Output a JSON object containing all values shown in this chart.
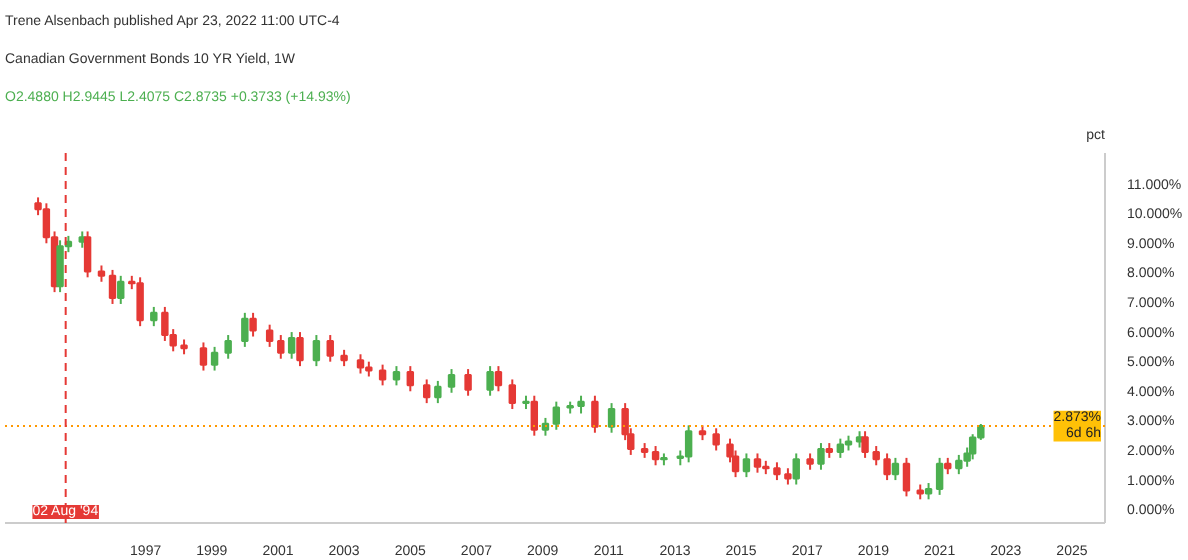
{
  "chart_data": {
    "type": "candlestick",
    "title": "Canadian Government Bonds 10 YR Yield, 1W",
    "subtitle": "O2.4880 H2.9445 L2.4075 C2.8735 +0.3733 (+14.93%)",
    "annotations": [
      "Trene Alsenbach published Apr 23, 2022 11:00 UTC-4"
    ],
    "ylabel": "pct",
    "x": [
      "1993-10",
      "1994-01",
      "1994-04",
      "1994-06",
      "1994-09",
      "1995-02",
      "1995-04",
      "1995-09",
      "1996-01",
      "1996-04",
      "1996-08",
      "1996-11",
      "1997-04",
      "1997-08",
      "1997-11",
      "1998-03",
      "1998-10",
      "1999-02",
      "1999-07",
      "2000-01",
      "2000-04",
      "2000-10",
      "2001-02",
      "2001-06",
      "2001-09",
      "2002-03",
      "2002-08",
      "2003-01",
      "2003-07",
      "2003-10",
      "2004-03",
      "2004-08",
      "2005-01",
      "2005-07",
      "2005-11",
      "2006-04",
      "2006-10",
      "2007-06",
      "2007-09",
      "2008-02",
      "2008-07",
      "2008-10",
      "2009-02",
      "2009-06",
      "2009-11",
      "2010-03",
      "2010-08",
      "2011-02",
      "2011-07",
      "2011-09",
      "2012-02",
      "2012-06",
      "2012-09",
      "2013-03",
      "2013-06",
      "2013-11",
      "2014-04",
      "2014-09",
      "2014-11",
      "2015-03",
      "2015-07",
      "2015-10",
      "2016-02",
      "2016-06",
      "2016-09",
      "2017-02",
      "2017-06",
      "2017-09",
      "2018-01",
      "2018-04",
      "2018-08",
      "2018-10",
      "2019-02",
      "2019-06",
      "2019-09",
      "2020-01",
      "2020-06",
      "2020-09",
      "2021-01",
      "2021-04",
      "2021-08",
      "2021-11",
      "2022-01",
      "2022-04"
    ],
    "ohlc": [
      [
        10.4,
        10.6,
        10.0,
        10.2
      ],
      [
        10.2,
        10.4,
        9.05,
        9.25
      ],
      [
        9.25,
        9.45,
        7.4,
        7.6
      ],
      [
        7.6,
        9.15,
        7.4,
        8.95
      ],
      [
        8.95,
        9.3,
        8.75,
        9.1
      ],
      [
        9.1,
        9.45,
        8.9,
        9.25
      ],
      [
        9.25,
        9.45,
        7.9,
        8.1
      ],
      [
        8.1,
        8.3,
        7.75,
        7.95
      ],
      [
        7.95,
        8.15,
        7.0,
        7.2
      ],
      [
        7.2,
        7.95,
        7.0,
        7.75
      ],
      [
        7.75,
        7.95,
        7.5,
        7.7
      ],
      [
        7.7,
        7.9,
        6.25,
        6.45
      ],
      [
        6.45,
        6.9,
        6.25,
        6.7
      ],
      [
        6.7,
        6.9,
        5.75,
        5.95
      ],
      [
        5.95,
        6.15,
        5.4,
        5.6
      ],
      [
        5.6,
        5.8,
        5.3,
        5.5
      ],
      [
        5.5,
        5.7,
        4.75,
        4.95
      ],
      [
        4.95,
        5.55,
        4.75,
        5.35
      ],
      [
        5.35,
        5.95,
        5.15,
        5.75
      ],
      [
        5.75,
        6.7,
        5.55,
        6.5
      ],
      [
        6.5,
        6.7,
        5.9,
        6.1
      ],
      [
        6.1,
        6.3,
        5.55,
        5.75
      ],
      [
        5.75,
        5.95,
        5.15,
        5.35
      ],
      [
        5.35,
        6.05,
        5.15,
        5.85
      ],
      [
        5.85,
        6.05,
        4.9,
        5.1
      ],
      [
        5.1,
        5.95,
        4.9,
        5.75
      ],
      [
        5.75,
        5.95,
        5.05,
        5.25
      ],
      [
        5.25,
        5.45,
        4.9,
        5.1
      ],
      [
        5.1,
        5.3,
        4.65,
        4.85
      ],
      [
        4.85,
        5.05,
        4.55,
        4.75
      ],
      [
        4.75,
        4.95,
        4.25,
        4.45
      ],
      [
        4.45,
        4.9,
        4.25,
        4.7
      ],
      [
        4.7,
        4.9,
        4.05,
        4.25
      ],
      [
        4.25,
        4.45,
        3.65,
        3.85
      ],
      [
        3.85,
        4.4,
        3.65,
        4.2
      ],
      [
        4.2,
        4.8,
        4.0,
        4.6
      ],
      [
        4.6,
        4.8,
        3.9,
        4.1
      ],
      [
        4.1,
        4.9,
        3.9,
        4.7
      ],
      [
        4.7,
        4.9,
        4.05,
        4.25
      ],
      [
        4.25,
        4.45,
        3.45,
        3.65
      ],
      [
        3.65,
        3.9,
        3.45,
        3.7
      ],
      [
        3.7,
        3.9,
        2.55,
        2.75
      ],
      [
        2.75,
        3.15,
        2.55,
        2.95
      ],
      [
        2.95,
        3.7,
        2.75,
        3.5
      ],
      [
        3.5,
        3.7,
        3.3,
        3.55
      ],
      [
        3.55,
        3.9,
        3.3,
        3.7
      ],
      [
        3.7,
        3.9,
        2.65,
        2.85
      ],
      [
        2.85,
        3.65,
        2.65,
        3.45
      ],
      [
        3.45,
        3.65,
        2.4,
        2.6
      ],
      [
        2.6,
        2.8,
        1.9,
        2.1
      ],
      [
        2.1,
        2.3,
        1.8,
        2.0
      ],
      [
        2.0,
        2.2,
        1.55,
        1.75
      ],
      [
        1.75,
        1.95,
        1.55,
        1.8
      ],
      [
        1.8,
        2.05,
        1.55,
        1.85
      ],
      [
        1.85,
        2.9,
        1.65,
        2.7
      ],
      [
        2.7,
        2.9,
        2.4,
        2.6
      ],
      [
        2.6,
        2.8,
        2.05,
        2.25
      ],
      [
        2.25,
        2.45,
        1.65,
        1.85
      ],
      [
        1.85,
        2.05,
        1.15,
        1.35
      ],
      [
        1.35,
        1.95,
        1.15,
        1.75
      ],
      [
        1.75,
        1.95,
        1.3,
        1.5
      ],
      [
        1.5,
        1.7,
        1.25,
        1.45
      ],
      [
        1.45,
        1.65,
        1.05,
        1.25
      ],
      [
        1.25,
        1.45,
        0.9,
        1.1
      ],
      [
        1.1,
        1.95,
        0.9,
        1.75
      ],
      [
        1.75,
        1.95,
        1.4,
        1.6
      ],
      [
        1.6,
        2.3,
        1.4,
        2.1
      ],
      [
        2.1,
        2.3,
        1.8,
        2.0
      ],
      [
        2.0,
        2.45,
        1.8,
        2.25
      ],
      [
        2.25,
        2.55,
        2.05,
        2.35
      ],
      [
        2.35,
        2.7,
        2.15,
        2.5
      ],
      [
        2.5,
        2.7,
        1.8,
        2.0
      ],
      [
        2.0,
        2.2,
        1.55,
        1.75
      ],
      [
        1.75,
        1.95,
        1.05,
        1.25
      ],
      [
        1.25,
        1.8,
        1.05,
        1.6
      ],
      [
        1.6,
        1.8,
        0.5,
        0.7
      ],
      [
        0.7,
        0.9,
        0.4,
        0.6
      ],
      [
        0.6,
        0.95,
        0.4,
        0.75
      ],
      [
        0.75,
        1.8,
        0.55,
        1.6
      ],
      [
        1.6,
        1.8,
        1.25,
        1.45
      ],
      [
        1.45,
        1.9,
        1.25,
        1.7
      ],
      [
        1.7,
        2.15,
        1.5,
        1.95
      ],
      [
        1.95,
        2.6,
        1.75,
        2.488
      ],
      [
        2.488,
        2.9445,
        2.4075,
        2.8735
      ]
    ],
    "colors": [
      "#e53935",
      "#e53935",
      "#e53935",
      "#4caf50",
      "#4caf50",
      "#4caf50",
      "#e53935",
      "#e53935",
      "#e53935",
      "#4caf50",
      "#e53935",
      "#e53935",
      "#4caf50",
      "#e53935",
      "#e53935",
      "#e53935",
      "#e53935",
      "#4caf50",
      "#4caf50",
      "#4caf50",
      "#e53935",
      "#e53935",
      "#e53935",
      "#4caf50",
      "#e53935",
      "#4caf50",
      "#e53935",
      "#e53935",
      "#e53935",
      "#e53935",
      "#e53935",
      "#4caf50",
      "#e53935",
      "#e53935",
      "#4caf50",
      "#4caf50",
      "#e53935",
      "#4caf50",
      "#e53935",
      "#e53935",
      "#4caf50",
      "#e53935",
      "#4caf50",
      "#4caf50",
      "#4caf50",
      "#4caf50",
      "#e53935",
      "#4caf50",
      "#e53935",
      "#e53935",
      "#e53935",
      "#e53935",
      "#4caf50",
      "#4caf50",
      "#4caf50",
      "#e53935",
      "#e53935",
      "#e53935",
      "#e53935",
      "#4caf50",
      "#e53935",
      "#e53935",
      "#e53935",
      "#e53935",
      "#4caf50",
      "#e53935",
      "#4caf50",
      "#e53935",
      "#4caf50",
      "#4caf50",
      "#4caf50",
      "#e53935",
      "#e53935",
      "#e53935",
      "#4caf50",
      "#e53935",
      "#e53935",
      "#4caf50",
      "#4caf50",
      "#e53935",
      "#4caf50",
      "#4caf50",
      "#4caf50",
      "#4caf50"
    ],
    "xlim": [
      "1992-10",
      "2026-01"
    ],
    "xticks": [
      "1997",
      "1999",
      "2001",
      "2003",
      "2005",
      "2007",
      "2009",
      "2011",
      "2013",
      "2015",
      "2017",
      "2019",
      "2021",
      "2023",
      "2025"
    ],
    "ylim": [
      -0.4,
      12.1
    ],
    "yticks": [
      {
        "value": 0,
        "label": "0.000%"
      },
      {
        "value": 1,
        "label": "1.000%"
      },
      {
        "value": 2,
        "label": "2.000%"
      },
      {
        "value": 3,
        "label": "3.000%"
      },
      {
        "value": 4,
        "label": "4.000%"
      },
      {
        "value": 5,
        "label": "5.000%"
      },
      {
        "value": 6,
        "label": "6.000%"
      },
      {
        "value": 7,
        "label": "7.000%"
      },
      {
        "value": 8,
        "label": "8.000%"
      },
      {
        "value": 9,
        "label": "9.000%"
      },
      {
        "value": 10,
        "label": "10.000%"
      },
      {
        "value": 11,
        "label": "11.000%"
      }
    ],
    "ref_lines": [
      {
        "axis": "y",
        "value": 2.8735,
        "label": "2.873%\n6d 6h",
        "color": "#ff9800",
        "line_style": "dotted"
      },
      {
        "axis": "x",
        "value": "1994-08-02",
        "label": "02 Aug '94",
        "color": "#e53935",
        "line_style": "dashed"
      }
    ]
  }
}
